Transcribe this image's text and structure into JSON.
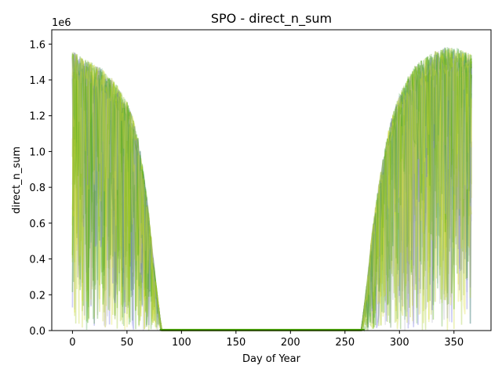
{
  "chart_data": {
    "type": "line",
    "title": "SPO - direct_n_sum",
    "xlabel": "Day of Year",
    "ylabel": "direct_n_sum",
    "y_offset_label": "1e6",
    "xlim": [
      -19,
      384
    ],
    "ylim": [
      0,
      1680000
    ],
    "x_ticks": [
      0,
      50,
      100,
      150,
      200,
      250,
      300,
      350
    ],
    "y_ticks": [
      0.0,
      0.2,
      0.4,
      0.6,
      0.8,
      1.0,
      1.2,
      1.4,
      1.6
    ],
    "y_tick_scale": 1000000,
    "grid": false,
    "legend": "none",
    "series_colors": [
      "#5aa832",
      "#c8d832",
      "#6a6ae0",
      "#e0e040",
      "#58b058",
      "#48a800",
      "#b8b8c8",
      "#a0c830"
    ],
    "envelope": {
      "description_x": "day of year",
      "x": [
        0,
        5,
        10,
        15,
        20,
        25,
        30,
        35,
        40,
        45,
        50,
        55,
        60,
        65,
        70,
        75,
        80,
        82,
        265,
        270,
        275,
        280,
        285,
        290,
        295,
        300,
        305,
        310,
        315,
        320,
        325,
        330,
        335,
        340,
        345,
        350,
        355,
        360,
        365,
        366
      ],
      "y": [
        1560000,
        1540000,
        1520000,
        1510000,
        1490000,
        1470000,
        1450000,
        1420000,
        1380000,
        1330000,
        1280000,
        1200000,
        1080000,
        900000,
        650000,
        350000,
        80000,
        0,
        0,
        250000,
        550000,
        780000,
        960000,
        1120000,
        1230000,
        1320000,
        1390000,
        1440000,
        1480000,
        1510000,
        1530000,
        1550000,
        1570000,
        1580000,
        1590000,
        1580000,
        1570000,
        1560000,
        1550000,
        1540000
      ]
    }
  }
}
